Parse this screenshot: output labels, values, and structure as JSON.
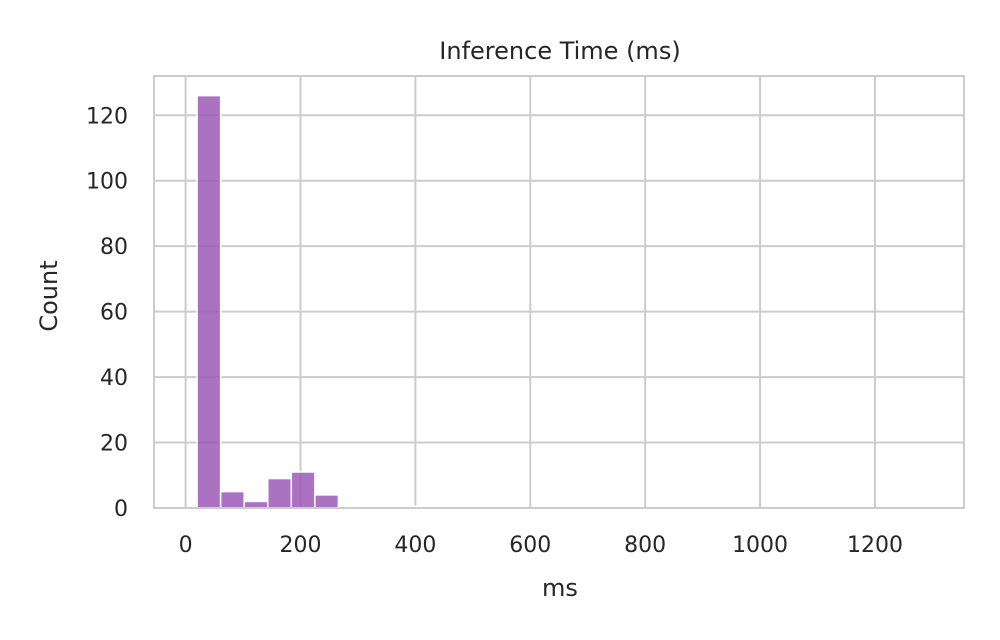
{
  "chart_data": {
    "type": "bar",
    "title": "Inference Time (ms)",
    "xlabel": "ms",
    "ylabel": "Count",
    "xlim": [
      -55,
      1355
    ],
    "ylim": [
      0,
      132
    ],
    "xticks": [
      0,
      200,
      400,
      600,
      800,
      1000,
      1200
    ],
    "yticks": [
      0,
      20,
      40,
      60,
      80,
      100,
      120
    ],
    "grid": true,
    "bar_color": "#9b59b6",
    "bins": [
      {
        "x0": 20,
        "x1": 61,
        "count": 126
      },
      {
        "x0": 61,
        "x1": 102,
        "count": 5
      },
      {
        "x0": 102,
        "x1": 143,
        "count": 2
      },
      {
        "x0": 143,
        "x1": 184,
        "count": 9
      },
      {
        "x0": 184,
        "x1": 225,
        "count": 11
      },
      {
        "x0": 225,
        "x1": 266,
        "count": 4
      },
      {
        "x0": 266,
        "x1": 307,
        "count": 0.5
      },
      {
        "x0": 307,
        "x1": 348,
        "count": 0
      },
      {
        "x0": 348,
        "x1": 389,
        "count": 0
      },
      {
        "x0": 389,
        "x1": 430,
        "count": 0.5
      },
      {
        "x0": 430,
        "x1": 471,
        "count": 0
      },
      {
        "x0": 471,
        "x1": 512,
        "count": 0
      },
      {
        "x0": 512,
        "x1": 553,
        "count": 0
      },
      {
        "x0": 553,
        "x1": 594,
        "count": 0
      },
      {
        "x0": 594,
        "x1": 635,
        "count": 0
      },
      {
        "x0": 635,
        "x1": 676,
        "count": 0.5
      },
      {
        "x0": 676,
        "x1": 717,
        "count": 0
      },
      {
        "x0": 717,
        "x1": 758,
        "count": 0
      },
      {
        "x0": 758,
        "x1": 799,
        "count": 0
      },
      {
        "x0": 799,
        "x1": 840,
        "count": 0
      },
      {
        "x0": 840,
        "x1": 881,
        "count": 0
      },
      {
        "x0": 881,
        "x1": 922,
        "count": 0
      },
      {
        "x0": 922,
        "x1": 963,
        "count": 0
      },
      {
        "x0": 963,
        "x1": 1004,
        "count": 0
      },
      {
        "x0": 1004,
        "x1": 1045,
        "count": 0
      },
      {
        "x0": 1045,
        "x1": 1086,
        "count": 0
      },
      {
        "x0": 1086,
        "x1": 1127,
        "count": 0
      },
      {
        "x0": 1127,
        "x1": 1168,
        "count": 0
      },
      {
        "x0": 1168,
        "x1": 1209,
        "count": 0
      },
      {
        "x0": 1209,
        "x1": 1250,
        "count": 0
      },
      {
        "x0": 1250,
        "x1": 1291,
        "count": 0.5
      }
    ]
  }
}
